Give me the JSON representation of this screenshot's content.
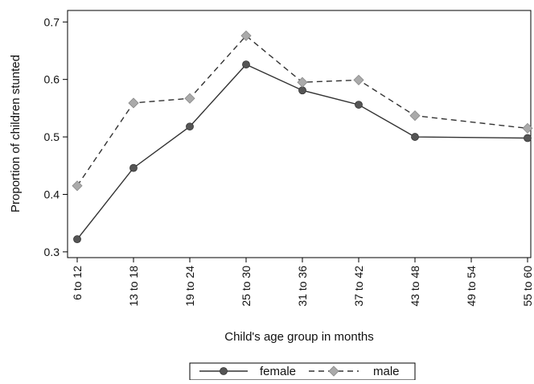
{
  "chart_data": {
    "type": "line",
    "categories": [
      "6 to 12",
      "13 to 18",
      "19 to 24",
      "25 to 30",
      "31 to 36",
      "37 to 42",
      "43 to 48",
      "49 to 54",
      "55 to 60"
    ],
    "series": [
      {
        "name": "female",
        "values": [
          0.322,
          0.446,
          0.518,
          0.626,
          0.581,
          0.556,
          0.5,
          null,
          0.498
        ],
        "color": "#333333",
        "marker": "circle",
        "line_style": "solid",
        "marker_color": "#555555"
      },
      {
        "name": "male",
        "values": [
          0.415,
          0.559,
          0.567,
          0.676,
          0.595,
          0.599,
          0.537,
          null,
          0.515
        ],
        "color": "#333333",
        "marker": "diamond",
        "line_style": "dashed",
        "marker_color": "#aaaaaa"
      }
    ],
    "xlabel": "Child's age group in months",
    "ylabel": "Proportion of children stunted",
    "ylim": [
      0.29,
      0.72
    ],
    "yticks": [
      "0.3",
      "0.4",
      "0.5",
      "0.6",
      "0.7"
    ],
    "grid": false,
    "legend_position": "bottom"
  }
}
